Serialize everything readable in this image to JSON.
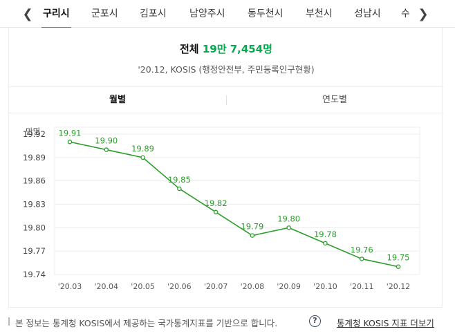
{
  "tabs": [
    "구리시",
    "군포시",
    "김포시",
    "남양주시",
    "동두천시",
    "부천시",
    "성남시",
    "수"
  ],
  "active_tab": 0,
  "icons": {
    "prev": "chevron-left-icon",
    "next": "chevron-right-icon",
    "help": "question-circle-icon"
  },
  "summary": {
    "label": "전체",
    "value": "19만 7,454명",
    "source": "'20.12, KOSIS (행정안전부, 주민등록인구현황)"
  },
  "period_tabs": {
    "monthly": "월별",
    "yearly": "연도별",
    "active": "monthly"
  },
  "colors": {
    "accent": "#03a94d",
    "line": "#2a9d2a",
    "grid": "#ececec"
  },
  "chart_data": {
    "type": "line",
    "unit_label": "만명",
    "x": [
      "'20.03",
      "'20.04",
      "'20.05",
      "'20.06",
      "'20.07",
      "'20.08",
      "'20.09",
      "'20.10",
      "'20.11",
      "'20.12"
    ],
    "values": [
      19.91,
      19.9,
      19.89,
      19.85,
      19.82,
      19.79,
      19.8,
      19.78,
      19.76,
      19.75
    ],
    "data_labels": [
      "19.91",
      "19.90",
      "19.89",
      "19.85",
      "19.82",
      "19.79",
      "19.80",
      "19.78",
      "19.76",
      "19.75"
    ],
    "yticks": [
      19.74,
      19.77,
      19.8,
      19.83,
      19.86,
      19.89,
      19.92
    ],
    "ytick_labels": [
      "19.74",
      "19.77",
      "19.80",
      "19.83",
      "19.86",
      "19.89",
      "19.92"
    ],
    "ylim": [
      19.74,
      19.92
    ],
    "grid": true,
    "legend": "none"
  },
  "footer": {
    "note": "본 정보는 통계청 KOSIS에서 제공하는 국가통계지표를 기반으로 합니다.",
    "help_glyph": "?",
    "more_link": "통계청 KOSIS 지표 더보기"
  }
}
